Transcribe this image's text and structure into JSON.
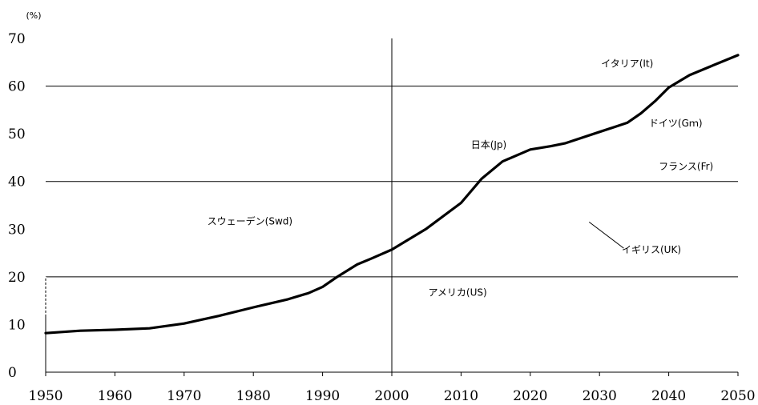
{
  "chart_data": {
    "type": "line",
    "title": "",
    "xlabel": "",
    "ylabel": "(%)",
    "xlim": [
      1950,
      2050
    ],
    "ylim": [
      0,
      70
    ],
    "x_ticks": [
      1950,
      1960,
      1970,
      1980,
      1990,
      2000,
      2010,
      2020,
      2030,
      2040,
      2050
    ],
    "y_ticks": [
      0,
      10,
      20,
      30,
      40,
      50,
      60,
      70
    ],
    "gridlines_y": [
      20,
      40,
      60
    ],
    "reference_line_x": 2000,
    "series": [
      {
        "name": "日本(Jp)",
        "x": [
          1950,
          1955,
          1960,
          1965,
          1970,
          1975,
          1980,
          1985,
          1988,
          1990,
          1992,
          1995,
          1997,
          2000,
          2005,
          2010,
          2013,
          2016,
          2020,
          2023,
          2025,
          2030,
          2034,
          2036,
          2038,
          2040,
          2043,
          2046,
          2050
        ],
        "y": [
          8.2,
          8.7,
          8.9,
          9.2,
          10.2,
          11.8,
          13.6,
          15.3,
          16.6,
          17.9,
          19.9,
          22.6,
          23.8,
          25.7,
          30.1,
          35.5,
          40.6,
          44.2,
          46.7,
          47.4,
          48.0,
          50.4,
          52.3,
          54.3,
          56.8,
          59.7,
          62.3,
          64.1,
          66.5
        ]
      }
    ],
    "annotations": [
      {
        "text": "イタリア(It)",
        "x": 2034,
        "y": 64
      },
      {
        "text": "ドイツ(Gｍ)",
        "x": 2041,
        "y": 51.5
      },
      {
        "text": "日本(Jp)",
        "x": 2014,
        "y": 47
      },
      {
        "text": "フランス(Fr)",
        "x": 2042.5,
        "y": 42.5
      },
      {
        "text": "スウェーデン(Swd)",
        "x": 1979.5,
        "y": 31
      },
      {
        "text": "イギリス(UK)",
        "x": 2037.5,
        "y": 25
      },
      {
        "text": "アメリカ(US)",
        "x": 2009.5,
        "y": 16
      }
    ],
    "pointer_line": {
      "x1": 2028.5,
      "y1": 31.5,
      "x2": 2033.5,
      "y2": 26
    },
    "grid": "horizontal",
    "legend": "none"
  }
}
